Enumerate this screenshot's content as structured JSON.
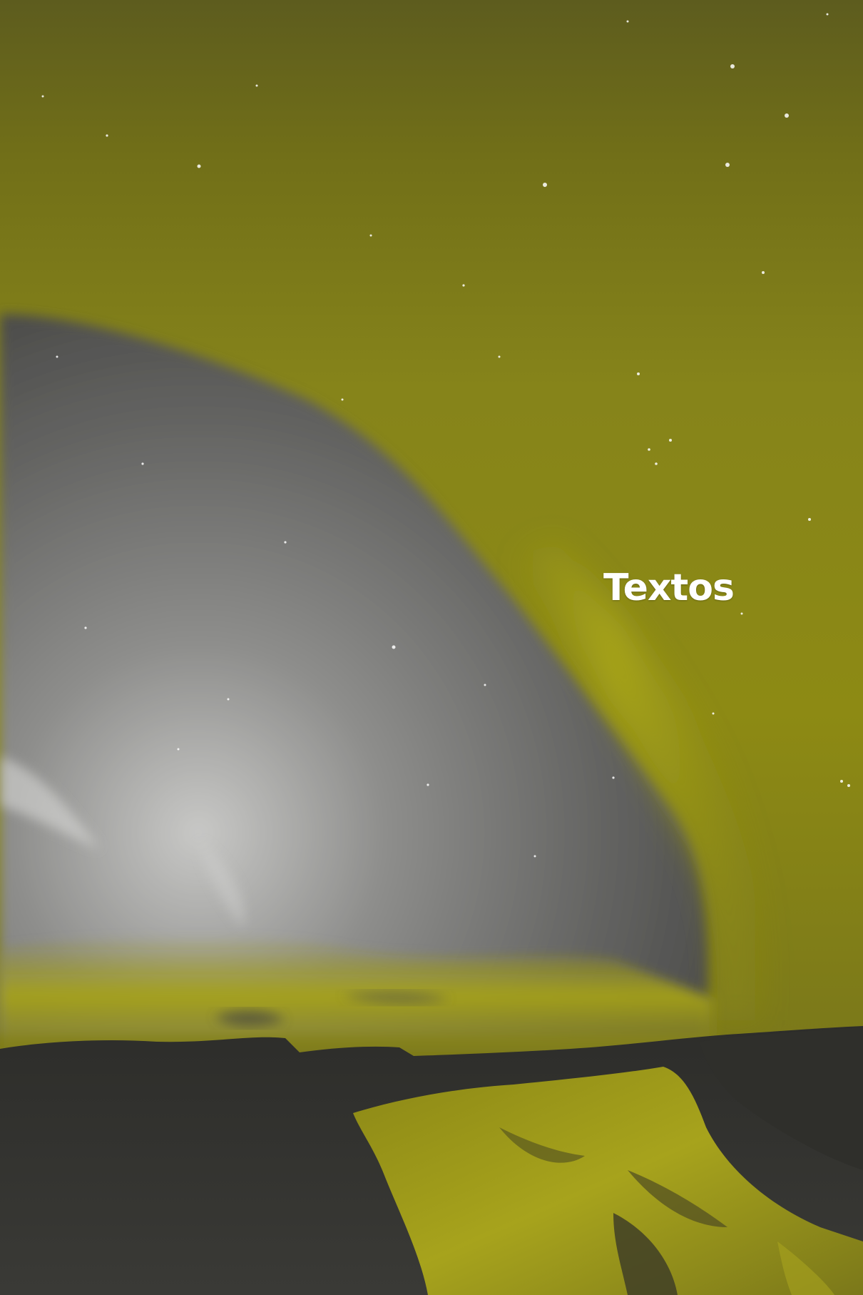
{
  "overlay": {
    "title": "Textos"
  },
  "colors": {
    "aurora_yellow": "#8c8a12",
    "aurora_bright": "#a3a11a",
    "sky_gray": "#6b6b69",
    "sky_light": "#bdbdbb",
    "ground_dark": "#2e2e2a",
    "water_yellow": "#9a9618",
    "title_text": "#ffffff"
  }
}
